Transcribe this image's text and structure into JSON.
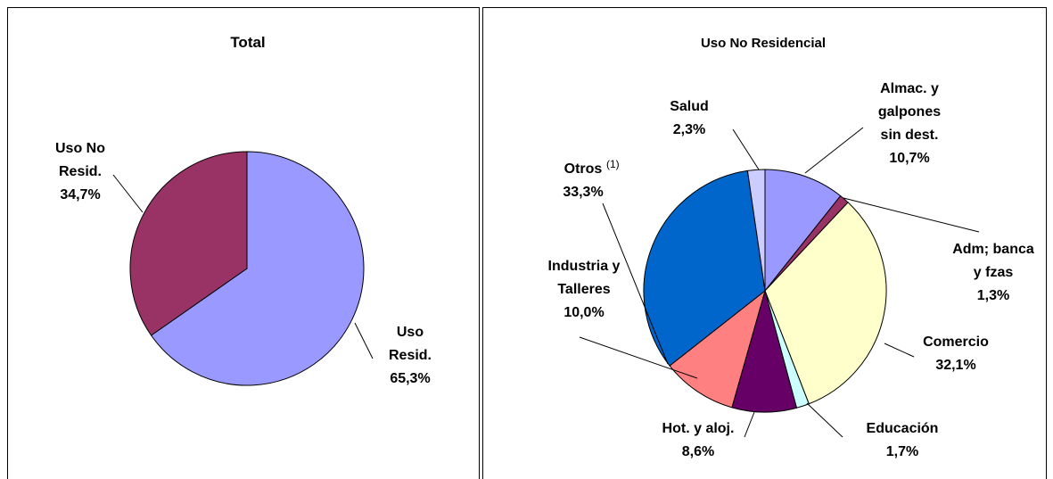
{
  "chart_data": [
    {
      "type": "pie",
      "title": "Total",
      "categories": [
        "Uso\nResid.",
        "Uso No\nResid."
      ],
      "values": [
        65.3,
        34.7
      ],
      "value_labels": [
        "65,3%",
        "34,7%"
      ],
      "colors": [
        "#9999ff",
        "#993366"
      ]
    },
    {
      "type": "pie",
      "title": "Uso No Residencial",
      "categories": [
        "Almac. y\ngalpones\nsin dest.",
        "Adm; banca\ny fzas",
        "Comercio",
        "Educación",
        "Hot. y aloj.",
        "Industria y\nTalleres",
        "Otros",
        "Salud"
      ],
      "superscripts": [
        null,
        null,
        null,
        null,
        null,
        null,
        "(1)",
        null
      ],
      "values": [
        10.7,
        1.3,
        32.1,
        1.7,
        8.6,
        10.0,
        33.3,
        2.3
      ],
      "value_labels": [
        "10,7%",
        "1,3%",
        "32,1%",
        "1,7%",
        "8,6%",
        "10,0%",
        "33,3%",
        "2,3%"
      ],
      "colors": [
        "#9999ff",
        "#993366",
        "#ffffcc",
        "#ccffff",
        "#660066",
        "#ff8080",
        "#0066cc",
        "#ccccff"
      ]
    }
  ]
}
